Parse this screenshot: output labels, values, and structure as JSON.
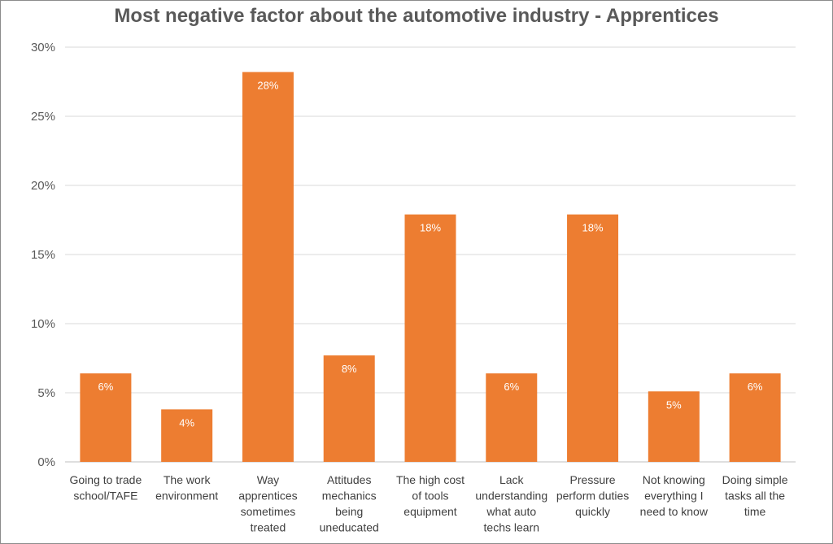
{
  "chart_data": {
    "type": "bar",
    "title": "Most negative factor about the automotive industry - Apprentices",
    "xlabel": "",
    "ylabel": "",
    "ylim": [
      0,
      30
    ],
    "yticks": [
      "0%",
      "5%",
      "10%",
      "15%",
      "20%",
      "25%",
      "30%"
    ],
    "grid": true,
    "bar_color": "#ED7D31",
    "categories": [
      [
        "Going to trade",
        "school/TAFE"
      ],
      [
        "The work",
        "environment"
      ],
      [
        "Way",
        "apprentices",
        "sometimes",
        "treated"
      ],
      [
        "Attitudes",
        "mechanics",
        "being",
        "uneducated"
      ],
      [
        "The high cost",
        "of tools",
        "equipment"
      ],
      [
        "Lack",
        "understanding",
        "what auto",
        "techs learn"
      ],
      [
        "Pressure",
        "perform duties",
        "quickly"
      ],
      [
        "Not knowing",
        "everything I",
        "need to know"
      ],
      [
        "Doing simple",
        "tasks all the",
        "time"
      ]
    ],
    "values": [
      6.4,
      3.8,
      28.2,
      7.7,
      17.9,
      6.4,
      17.9,
      5.1,
      6.4
    ],
    "data_labels": [
      "6%",
      "4%",
      "28%",
      "8%",
      "18%",
      "6%",
      "18%",
      "5%",
      "6%"
    ]
  }
}
